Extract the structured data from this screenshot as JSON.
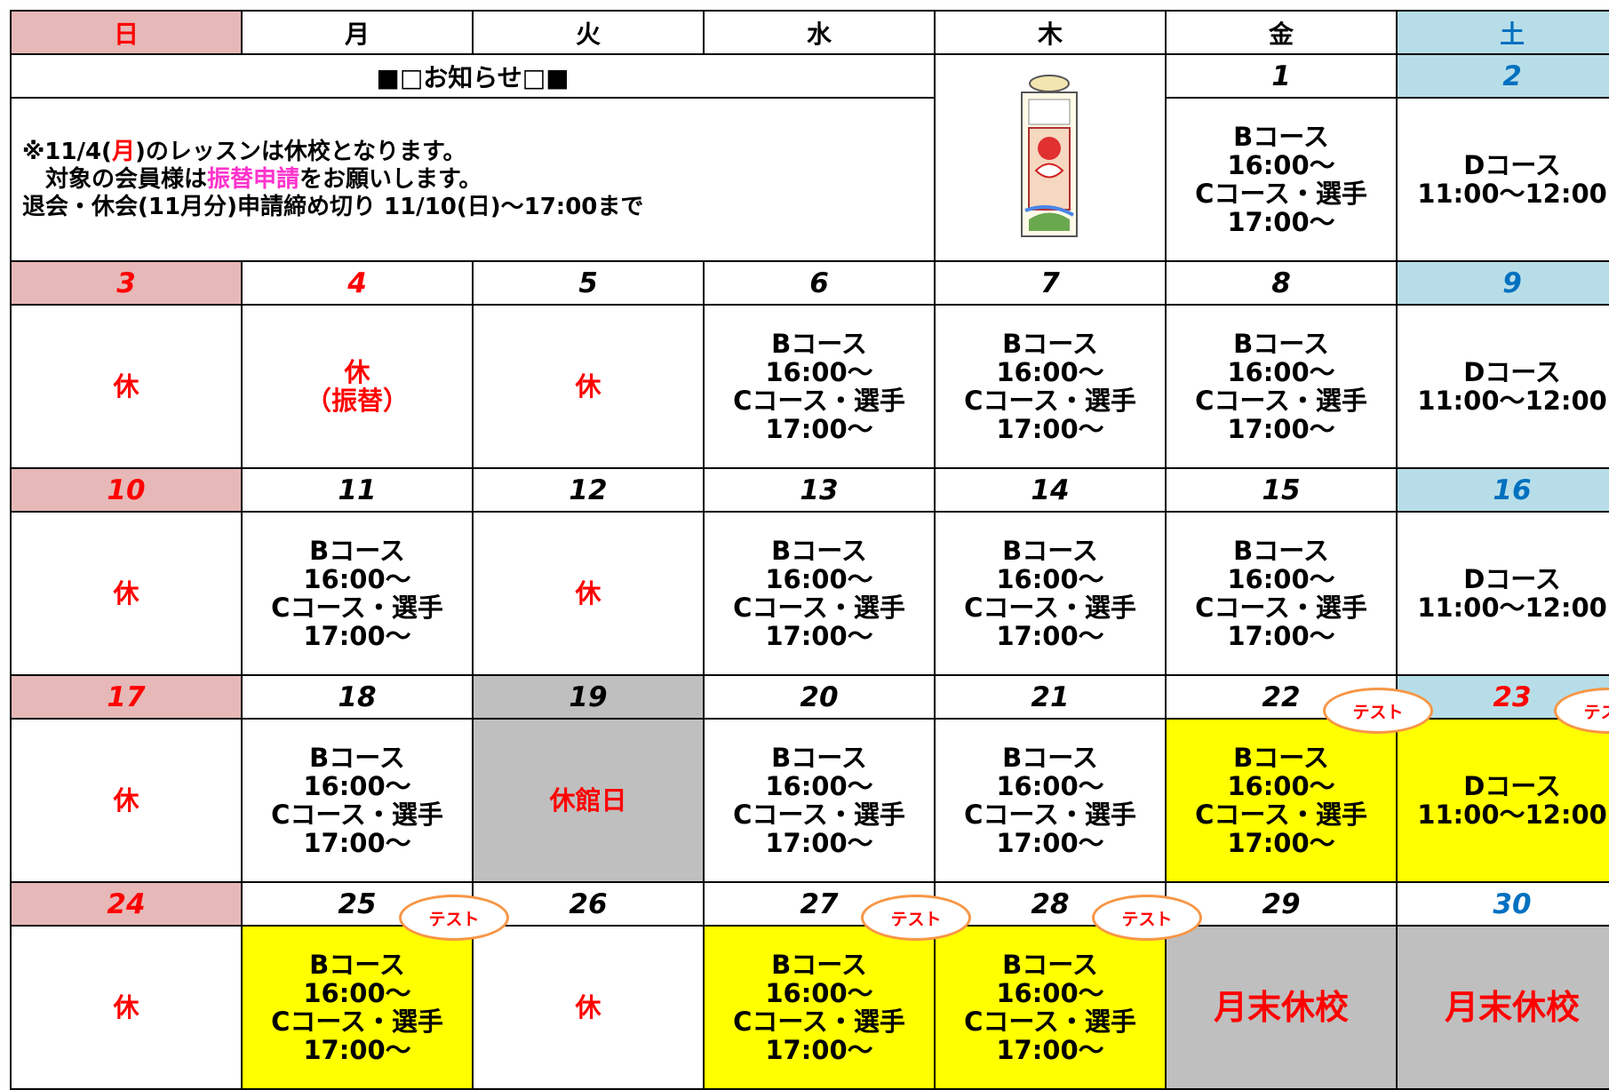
{
  "weekdays": [
    "日",
    "月",
    "火",
    "水",
    "木",
    "金",
    "土"
  ],
  "notice": {
    "title": "■□お知らせ□■",
    "lines": [
      [
        {
          "text": "※11/4("
        },
        {
          "text": "月",
          "color": "#ff0000"
        },
        {
          "text": ")のレッスンは休校となります。"
        }
      ],
      [
        {
          "text": "　対象の会員様は"
        },
        {
          "text": "振替申請",
          "color": "#ff33cc"
        },
        {
          "text": "をお願いします。"
        }
      ],
      [
        {
          "text": "退会・休会(11月分)申請締め切り 11/10(日)～17:00まで"
        }
      ]
    ]
  },
  "weeks": [
    {
      "days": [
        null,
        null,
        null,
        null,
        null,
        {
          "label": "1"
        },
        {
          "label": "2"
        }
      ],
      "cells": [
        null,
        null,
        null,
        null,
        null,
        {
          "lines": [
            "Bコース",
            "16:00～",
            "Cコース・選手",
            "17:00～"
          ]
        },
        {
          "lines": [
            "Dコース",
            "11:00～12:00"
          ]
        }
      ]
    },
    {
      "days": [
        {
          "label": "3"
        },
        {
          "label": "4",
          "color": "#ff0000"
        },
        {
          "label": "5"
        },
        {
          "label": "6"
        },
        {
          "label": "7"
        },
        {
          "label": "8"
        },
        {
          "label": "9"
        }
      ],
      "cells": [
        {
          "lines": [
            "休"
          ],
          "color": "#ff0000"
        },
        {
          "lines": [
            "休",
            "（振替）"
          ],
          "color": "#ff0000"
        },
        {
          "lines": [
            "休"
          ],
          "color": "#ff0000"
        },
        {
          "lines": [
            "Bコース",
            "16:00～",
            "Cコース・選手",
            "17:00～"
          ]
        },
        {
          "lines": [
            "Bコース",
            "16:00～",
            "Cコース・選手",
            "17:00～"
          ]
        },
        {
          "lines": [
            "Bコース",
            "16:00～",
            "Cコース・選手",
            "17:00～"
          ]
        },
        {
          "lines": [
            "Dコース",
            "11:00～12:00"
          ]
        }
      ]
    },
    {
      "days": [
        {
          "label": "10"
        },
        {
          "label": "11"
        },
        {
          "label": "12"
        },
        {
          "label": "13"
        },
        {
          "label": "14"
        },
        {
          "label": "15"
        },
        {
          "label": "16"
        }
      ],
      "cells": [
        {
          "lines": [
            "休"
          ],
          "color": "#ff0000"
        },
        {
          "lines": [
            "Bコース",
            "16:00～",
            "Cコース・選手",
            "17:00～"
          ]
        },
        {
          "lines": [
            "休"
          ],
          "color": "#ff0000"
        },
        {
          "lines": [
            "Bコース",
            "16:00～",
            "Cコース・選手",
            "17:00～"
          ]
        },
        {
          "lines": [
            "Bコース",
            "16:00～",
            "Cコース・選手",
            "17:00～"
          ]
        },
        {
          "lines": [
            "Bコース",
            "16:00～",
            "Cコース・選手",
            "17:00～"
          ]
        },
        {
          "lines": [
            "Dコース",
            "11:00～12:00"
          ]
        }
      ]
    },
    {
      "days": [
        {
          "label": "17"
        },
        {
          "label": "18"
        },
        {
          "label": "19",
          "bg": "#bfbfbf"
        },
        {
          "label": "20"
        },
        {
          "label": "21"
        },
        {
          "label": "22"
        },
        {
          "label": "23",
          "color": "#ff0000"
        }
      ],
      "cells": [
        {
          "lines": [
            "休"
          ],
          "color": "#ff0000"
        },
        {
          "lines": [
            "Bコース",
            "16:00～",
            "Cコース・選手",
            "17:00～"
          ]
        },
        {
          "lines": [
            "休館日"
          ],
          "color": "#ff0000",
          "bg": "#bfbfbf"
        },
        {
          "lines": [
            "Bコース",
            "16:00～",
            "Cコース・選手",
            "17:00～"
          ]
        },
        {
          "lines": [
            "Bコース",
            "16:00～",
            "Cコース・選手",
            "17:00～"
          ]
        },
        {
          "lines": [
            "Bコース",
            "16:00～",
            "Cコース・選手",
            "17:00～"
          ],
          "bg": "#ffff00",
          "badge": "テスト"
        },
        {
          "lines": [
            "Dコース",
            "11:00～12:00"
          ],
          "bg": "#ffff00",
          "badge": "テスト"
        }
      ]
    },
    {
      "days": [
        {
          "label": "24"
        },
        {
          "label": "25"
        },
        {
          "label": "26"
        },
        {
          "label": "27"
        },
        {
          "label": "28"
        },
        {
          "label": "29"
        },
        {
          "label": "30",
          "bg": "#ffffff"
        }
      ],
      "cells": [
        {
          "lines": [
            "休"
          ],
          "color": "#ff0000"
        },
        {
          "lines": [
            "Bコース",
            "16:00～",
            "Cコース・選手",
            "17:00～"
          ],
          "bg": "#ffff00",
          "badge": "テスト"
        },
        {
          "lines": [
            "休"
          ],
          "color": "#ff0000"
        },
        {
          "lines": [
            "Bコース",
            "16:00～",
            "Cコース・選手",
            "17:00～"
          ],
          "bg": "#ffff00",
          "badge": "テスト"
        },
        {
          "lines": [
            "Bコース",
            "16:00～",
            "Cコース・選手",
            "17:00～"
          ],
          "bg": "#ffff00",
          "badge": "テスト"
        },
        {
          "lines": [
            "月末休校"
          ],
          "color": "#ff0000",
          "bg": "#bfbfbf",
          "big": true
        },
        {
          "lines": [
            "月末休校"
          ],
          "color": "#ff0000",
          "bg": "#bfbfbf",
          "big": true
        }
      ]
    }
  ]
}
